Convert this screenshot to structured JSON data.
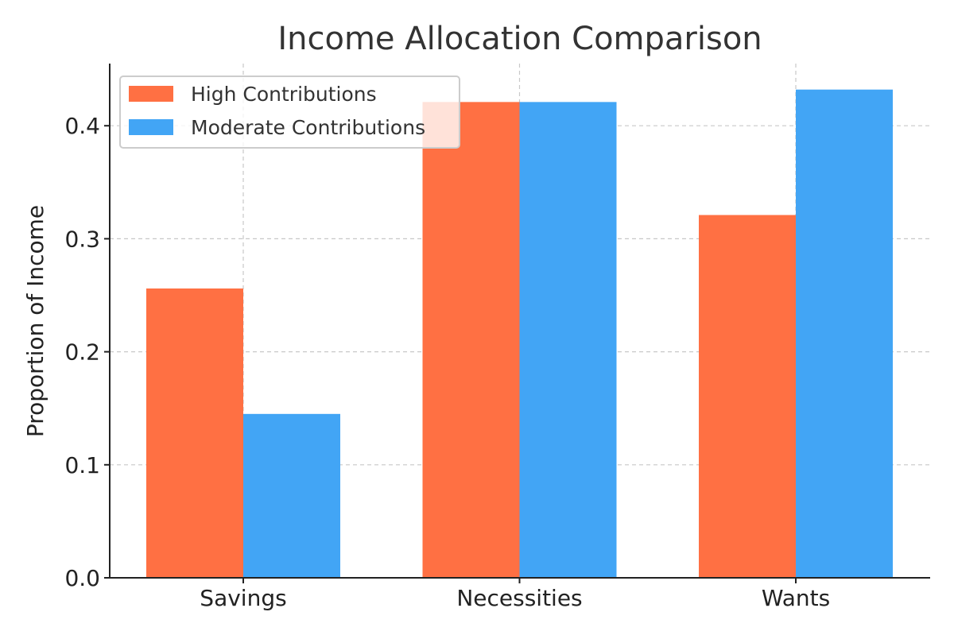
{
  "chart_data": {
    "type": "bar",
    "title": "Income Allocation Comparison",
    "xlabel": "",
    "ylabel": "Proportion of Income",
    "categories": [
      "Savings",
      "Necessities",
      "Wants"
    ],
    "series": [
      {
        "name": "High Contributions",
        "values": [
          0.256,
          0.421,
          0.321
        ],
        "color": "#ff7043"
      },
      {
        "name": "Moderate Contributions",
        "values": [
          0.145,
          0.421,
          0.432
        ],
        "color": "#42a5f5"
      }
    ],
    "ylim": [
      0,
      0.455
    ],
    "yticks": [
      0.0,
      0.1,
      0.2,
      0.3,
      0.4
    ],
    "ytick_labels": [
      "0.0",
      "0.1",
      "0.2",
      "0.3",
      "0.4"
    ],
    "grid": true,
    "legend_position": "top-left"
  }
}
